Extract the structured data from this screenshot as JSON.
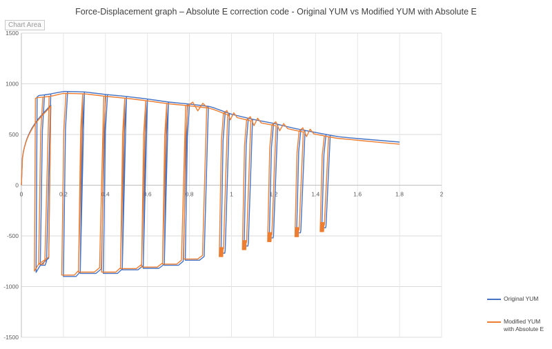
{
  "chart_data": {
    "type": "line",
    "title": "Force-Displacement graph – Absolute E correction code - Original YUM vs Modified YUM with Absolute E",
    "chart_area_label": "Chart Area",
    "xlabel": "",
    "ylabel": "",
    "xlim": [
      0,
      2
    ],
    "ylim": [
      -1500,
      1500
    ],
    "x_ticks": [
      0,
      0.2,
      0.4,
      0.6,
      0.8,
      1,
      1.2,
      1.4,
      1.6,
      1.8,
      2
    ],
    "x_tick_labels": [
      "0",
      "0.2",
      "0.4",
      "0.6",
      "0.8",
      "1",
      "1.2",
      "1.4",
      "1.6",
      "1.8",
      "2"
    ],
    "y_ticks": [
      -1500,
      -1000,
      -500,
      0,
      500,
      1000,
      1500
    ],
    "y_tick_labels": [
      "-1500",
      "-1000",
      "-500",
      "0",
      "500",
      "1000",
      "1500"
    ],
    "grid": "horizontal",
    "legend_position": "right",
    "cycles": [
      {
        "start": 0.14,
        "fmax": 900,
        "xmin": 0.09,
        "fmin": -790,
        "xret": 0.2
      },
      {
        "start": 0.3,
        "fmax": 920,
        "xmin": 0.2,
        "fmin": -900,
        "xret": 0.33
      },
      {
        "start": 0.4,
        "fmax": 895,
        "xmin": 0.28,
        "fmin": -870,
        "xret": 0.43
      },
      {
        "start": 0.5,
        "fmax": 875,
        "xmin": 0.39,
        "fmin": -870,
        "xret": 0.53
      },
      {
        "start": 0.6,
        "fmax": 850,
        "xmin": 0.48,
        "fmin": -835,
        "xret": 0.63
      },
      {
        "start": 0.7,
        "fmax": 820,
        "xmin": 0.58,
        "fmin": -820,
        "xret": 0.73
      },
      {
        "start": 0.79,
        "fmax": 800,
        "xmin": 0.68,
        "fmin": -790,
        "xret": 0.83
      },
      {
        "start": 0.89,
        "fmax": 775,
        "xmin": 0.78,
        "fmin": -740,
        "xret": 0.94
      },
      {
        "start": 0.99,
        "fmax": 700,
        "xmin": 0.97,
        "fmin": -670,
        "xret": 1.04
      },
      {
        "start": 1.1,
        "fmax": 650,
        "xmin": 1.1,
        "fmin": -600,
        "xret": 1.15
      },
      {
        "start": 1.22,
        "fmax": 550,
        "xmin": 1.27,
        "fmin": -520,
        "xret": 1.28
      },
      {
        "start": 1.35,
        "fmax": 520,
        "xmin": 1.4,
        "fmin": -470,
        "xret": 1.45
      },
      {
        "start": 1.47,
        "fmax": 480,
        "xmin": 1.54,
        "fmin": -420,
        "xret": 1.65
      }
    ],
    "series": [
      {
        "name": "Original YUM",
        "color": "#4472c4",
        "envelope_x": [
          0.07,
          0.14,
          0.2,
          0.3,
          0.4,
          0.5,
          0.6,
          0.7,
          0.8,
          0.9,
          1.0,
          1.1,
          1.2,
          1.3,
          1.4,
          1.5,
          1.6,
          1.8
        ],
        "envelope_y": [
          880,
          900,
          925,
          920,
          895,
          875,
          850,
          820,
          800,
          775,
          700,
          650,
          610,
          560,
          520,
          480,
          460,
          425
        ]
      },
      {
        "name": "Modified YUM with Absolute E",
        "color": "#ed7d31",
        "envelope_x": [
          0.07,
          0.14,
          0.2,
          0.3,
          0.4,
          0.5,
          0.6,
          0.7,
          0.8,
          0.9,
          1.0,
          1.1,
          1.2,
          1.3,
          1.4,
          1.5,
          1.6,
          1.8
        ],
        "envelope_y": [
          875,
          890,
          920,
          915,
          890,
          870,
          845,
          815,
          795,
          770,
          690,
          640,
          600,
          550,
          510,
          470,
          450,
          410
        ]
      }
    ]
  }
}
